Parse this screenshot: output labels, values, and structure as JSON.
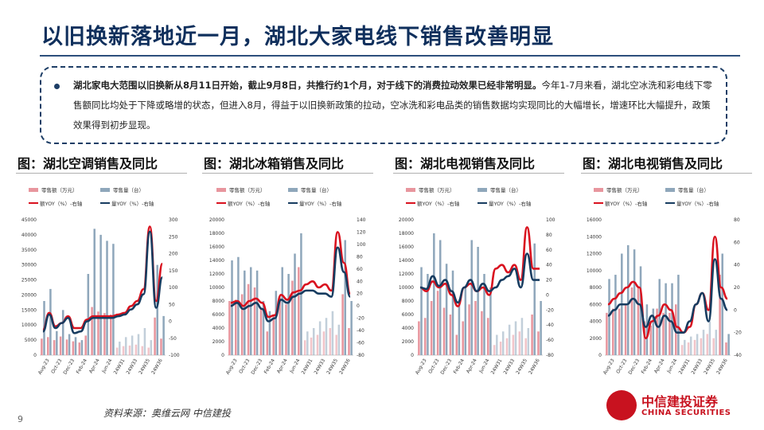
{
  "header": {
    "title": "以旧换新落地近一月，湖北大家电线下销售改善明显"
  },
  "summary": {
    "lead": "湖北家电大范围以旧换新从8月11日开始，截止9月8日，共推行约1个月，对于线下的消费拉动效果已经非常明显。",
    "body": "今年1-7月来看，湖北空冰洗和彩电线下零售额同比均处于下降或略增的状态，但进入8月，得益于以旧换新政策的拉动，空冰洗和彩电品类的销售数据均实现同比的大幅增长，增速环比大幅提升，政策效果得到初步显现。"
  },
  "footer": {
    "source": "资料来源：奥维云网  中信建投",
    "page": "9"
  },
  "logo": {
    "name_cn": "中信建投证券",
    "name_en": "CHINA SECURITIES"
  },
  "colors": {
    "title": "#0f2f5c",
    "rev_bar": "#e8969e",
    "vol_bar": "#8fa7bb",
    "rev_line": "#d9121f",
    "vol_line": "#173c60",
    "logo": "#c8121f"
  },
  "chart_data": [
    {
      "type": "bar",
      "title": "图：湖北空调销售及同比",
      "legend": [
        "零售额（万元）",
        "零售量（台）",
        "额YOY（%）-右轴",
        "量YOY（%）-右轴"
      ],
      "x_tick_labels": [
        "Aug-23",
        "Oct-23",
        "Dec-23",
        "Feb-24",
        "Apr-24",
        "Jun-24",
        "24W31",
        "24W33",
        "24W35",
        "24W36"
      ],
      "left_axis": {
        "min": 0,
        "max": 45000,
        "ticks": [
          0,
          5000,
          10000,
          15000,
          20000,
          25000,
          30000,
          35000,
          40000,
          45000
        ]
      },
      "right_axis": {
        "min": -100,
        "max": 300,
        "ticks": [
          -100,
          -50,
          0,
          50,
          100,
          150,
          200,
          250,
          300
        ]
      },
      "categories_count": 20,
      "series": [
        {
          "name": "零售额（万元）",
          "type": "bar",
          "axis": "left",
          "values": [
            5500,
            6000,
            5000,
            6200,
            5200,
            4600,
            4200,
            6500,
            16000,
            14500,
            14000,
            13500,
            2500,
            3000,
            3200,
            3500,
            3000,
            2500,
            12500,
            5500
          ]
        },
        {
          "name": "零售量（台）",
          "type": "bar",
          "axis": "left",
          "values": [
            18000,
            22000,
            8000,
            15000,
            7000,
            6000,
            5000,
            27000,
            42000,
            40000,
            38000,
            37000,
            4500,
            6000,
            6500,
            7000,
            9000,
            5000,
            30000,
            13000
          ]
        },
        {
          "name": "额YOY（%）-右轴",
          "type": "line",
          "axis": "right",
          "values": [
            -25,
            25,
            -15,
            -5,
            15,
            -20,
            -20,
            5,
            15,
            15,
            15,
            15,
            20,
            25,
            45,
            60,
            95,
            280,
            60,
            170
          ]
        },
        {
          "name": "量YOY（%）-右轴",
          "type": "line",
          "axis": "right",
          "values": [
            -30,
            20,
            -20,
            -5,
            10,
            -35,
            -30,
            0,
            10,
            10,
            10,
            10,
            15,
            20,
            35,
            50,
            80,
            265,
            40,
            130
          ]
        }
      ]
    },
    {
      "type": "bar",
      "title": "图：湖北冰箱销售及同比",
      "legend": [
        "零售额（万元）",
        "零售量（台）",
        "额YOY（%）-右轴",
        "量YOY（%）-右轴"
      ],
      "x_tick_labels": [
        "Aug-23",
        "Oct-23",
        "Dec-23",
        "Feb-24",
        "Apr-24",
        "Jun-24",
        "24W31",
        "24W33",
        "24W35",
        "24W36"
      ],
      "left_axis": {
        "min": 0,
        "max": 20000,
        "ticks": [
          0,
          2000,
          4000,
          6000,
          8000,
          10000,
          12000,
          14000,
          16000,
          18000,
          20000
        ]
      },
      "right_axis": {
        "min": -80,
        "max": 140,
        "ticks": [
          -80,
          -60,
          -40,
          -20,
          0,
          20,
          40,
          60,
          80,
          100,
          120,
          140
        ]
      },
      "categories_count": 20,
      "series": [
        {
          "name": "零售额（万元）",
          "type": "bar",
          "axis": "left",
          "values": [
            8000,
            8200,
            9000,
            10500,
            10000,
            7000,
            3500,
            6000,
            8500,
            7500,
            11000,
            13000,
            2200,
            2600,
            3000,
            3500,
            4000,
            3000,
            9000,
            4000
          ]
        },
        {
          "name": "零售量（台）",
          "type": "bar",
          "axis": "left",
          "values": [
            14000,
            14500,
            12500,
            13000,
            12500,
            8000,
            6500,
            9500,
            13000,
            12000,
            15000,
            18000,
            3500,
            4000,
            5000,
            5500,
            6500,
            4500,
            17000,
            8000
          ]
        },
        {
          "name": "额YOY（%）-右轴",
          "type": "line",
          "axis": "right",
          "values": [
            5,
            8,
            0,
            8,
            12,
            5,
            -18,
            -15,
            18,
            10,
            22,
            25,
            35,
            40,
            30,
            35,
            25,
            120,
            70,
            20
          ]
        },
        {
          "name": "量YOY（%）-右轴",
          "type": "line",
          "axis": "right",
          "values": [
            0,
            5,
            -5,
            0,
            5,
            -5,
            -25,
            -20,
            10,
            5,
            15,
            20,
            25,
            25,
            20,
            20,
            15,
            95,
            55,
            15
          ]
        }
      ]
    },
    {
      "type": "bar",
      "title": "图：湖北电视销售及同比",
      "legend": [
        "零售额（万元）",
        "零售量（台）",
        "额YOY（%）-右轴",
        "量YOY（%）-右轴"
      ],
      "x_tick_labels": [
        "Aug-23",
        "Oct-23",
        "Dec-23",
        "Feb-24",
        "Apr-24",
        "Jun-24",
        "24W31",
        "24W33",
        "24W35",
        "24W36"
      ],
      "left_axis": {
        "min": 0,
        "max": 20000,
        "ticks": [
          0,
          2000,
          4000,
          6000,
          8000,
          10000,
          12000,
          14000,
          16000,
          18000,
          20000
        ]
      },
      "right_axis": {
        "min": -80,
        "max": 100,
        "ticks": [
          -80,
          -60,
          -40,
          -20,
          0,
          20,
          40,
          60,
          80,
          100
        ]
      },
      "categories_count": 20,
      "series": [
        {
          "name": "零售额（万元）",
          "type": "bar",
          "axis": "left",
          "values": [
            5000,
            5500,
            8000,
            9500,
            7000,
            6000,
            3000,
            5000,
            7500,
            8000,
            6500,
            5500,
            1500,
            2000,
            2500,
            3000,
            3500,
            2500,
            6000,
            3500
          ]
        },
        {
          "name": "零售量（台）",
          "type": "bar",
          "axis": "left",
          "values": [
            13000,
            12000,
            18000,
            17000,
            13500,
            12500,
            8000,
            10000,
            17000,
            16000,
            12000,
            10000,
            3000,
            3500,
            4500,
            5000,
            5500,
            4000,
            16500,
            8000
          ]
        },
        {
          "name": "额YOY（%）-右轴",
          "type": "line",
          "axis": "right",
          "values": [
            10,
            5,
            18,
            10,
            15,
            0,
            -15,
            10,
            15,
            5,
            10,
            0,
            35,
            40,
            30,
            40,
            20,
            90,
            35,
            35
          ]
        },
        {
          "name": "量YOY（%）-右轴",
          "type": "line",
          "axis": "right",
          "values": [
            10,
            8,
            25,
            12,
            20,
            5,
            -10,
            10,
            20,
            5,
            15,
            5,
            10,
            20,
            25,
            35,
            10,
            55,
            20,
            20
          ]
        }
      ]
    },
    {
      "type": "bar",
      "title": "图：湖北电视销售及同比",
      "legend": [
        "零售额（万元）",
        "零售量（台）",
        "额YOY（%）-右轴",
        "量YOY（%）-右轴"
      ],
      "x_tick_labels": [
        "Aug-23",
        "Oct-23",
        "Dec-23",
        "Feb-24",
        "Apr-24",
        "Jun-24",
        "24W31",
        "24W33",
        "24W35",
        "24W36"
      ],
      "left_axis": {
        "min": 0,
        "max": 16000,
        "ticks": [
          0,
          2000,
          4000,
          6000,
          8000,
          10000,
          12000,
          14000,
          16000
        ]
      },
      "right_axis": {
        "min": -40,
        "max": 80,
        "ticks": [
          -40,
          -20,
          0,
          20,
          40,
          60,
          80
        ]
      },
      "categories_count": 20,
      "series": [
        {
          "name": "零售额（万元）",
          "type": "bar",
          "axis": "left",
          "values": [
            5000,
            5500,
            5500,
            6000,
            8000,
            8000,
            4000,
            3500,
            5500,
            5000,
            5000,
            6000,
            1200,
            1500,
            1800,
            2000,
            2500,
            2000,
            9500,
            1500
          ]
        },
        {
          "name": "零售量（台）",
          "type": "bar",
          "axis": "left",
          "values": [
            9000,
            9500,
            12000,
            13000,
            12500,
            10500,
            6000,
            5500,
            9000,
            8500,
            8500,
            9500,
            1800,
            2200,
            2500,
            3000,
            4000,
            3000,
            12000,
            2500
          ]
        },
        {
          "name": "额YOY（%）-右轴",
          "type": "line",
          "axis": "right",
          "values": [
            5,
            10,
            15,
            20,
            25,
            20,
            -25,
            -10,
            -5,
            5,
            0,
            -15,
            -20,
            -15,
            5,
            15,
            0,
            65,
            20,
            10
          ]
        },
        {
          "name": "量YOY（%）-右轴",
          "type": "line",
          "axis": "right",
          "values": [
            -5,
            0,
            5,
            5,
            10,
            5,
            -15,
            -5,
            -15,
            -5,
            -10,
            -20,
            -20,
            -10,
            5,
            15,
            -10,
            45,
            10,
            0
          ]
        }
      ]
    }
  ]
}
